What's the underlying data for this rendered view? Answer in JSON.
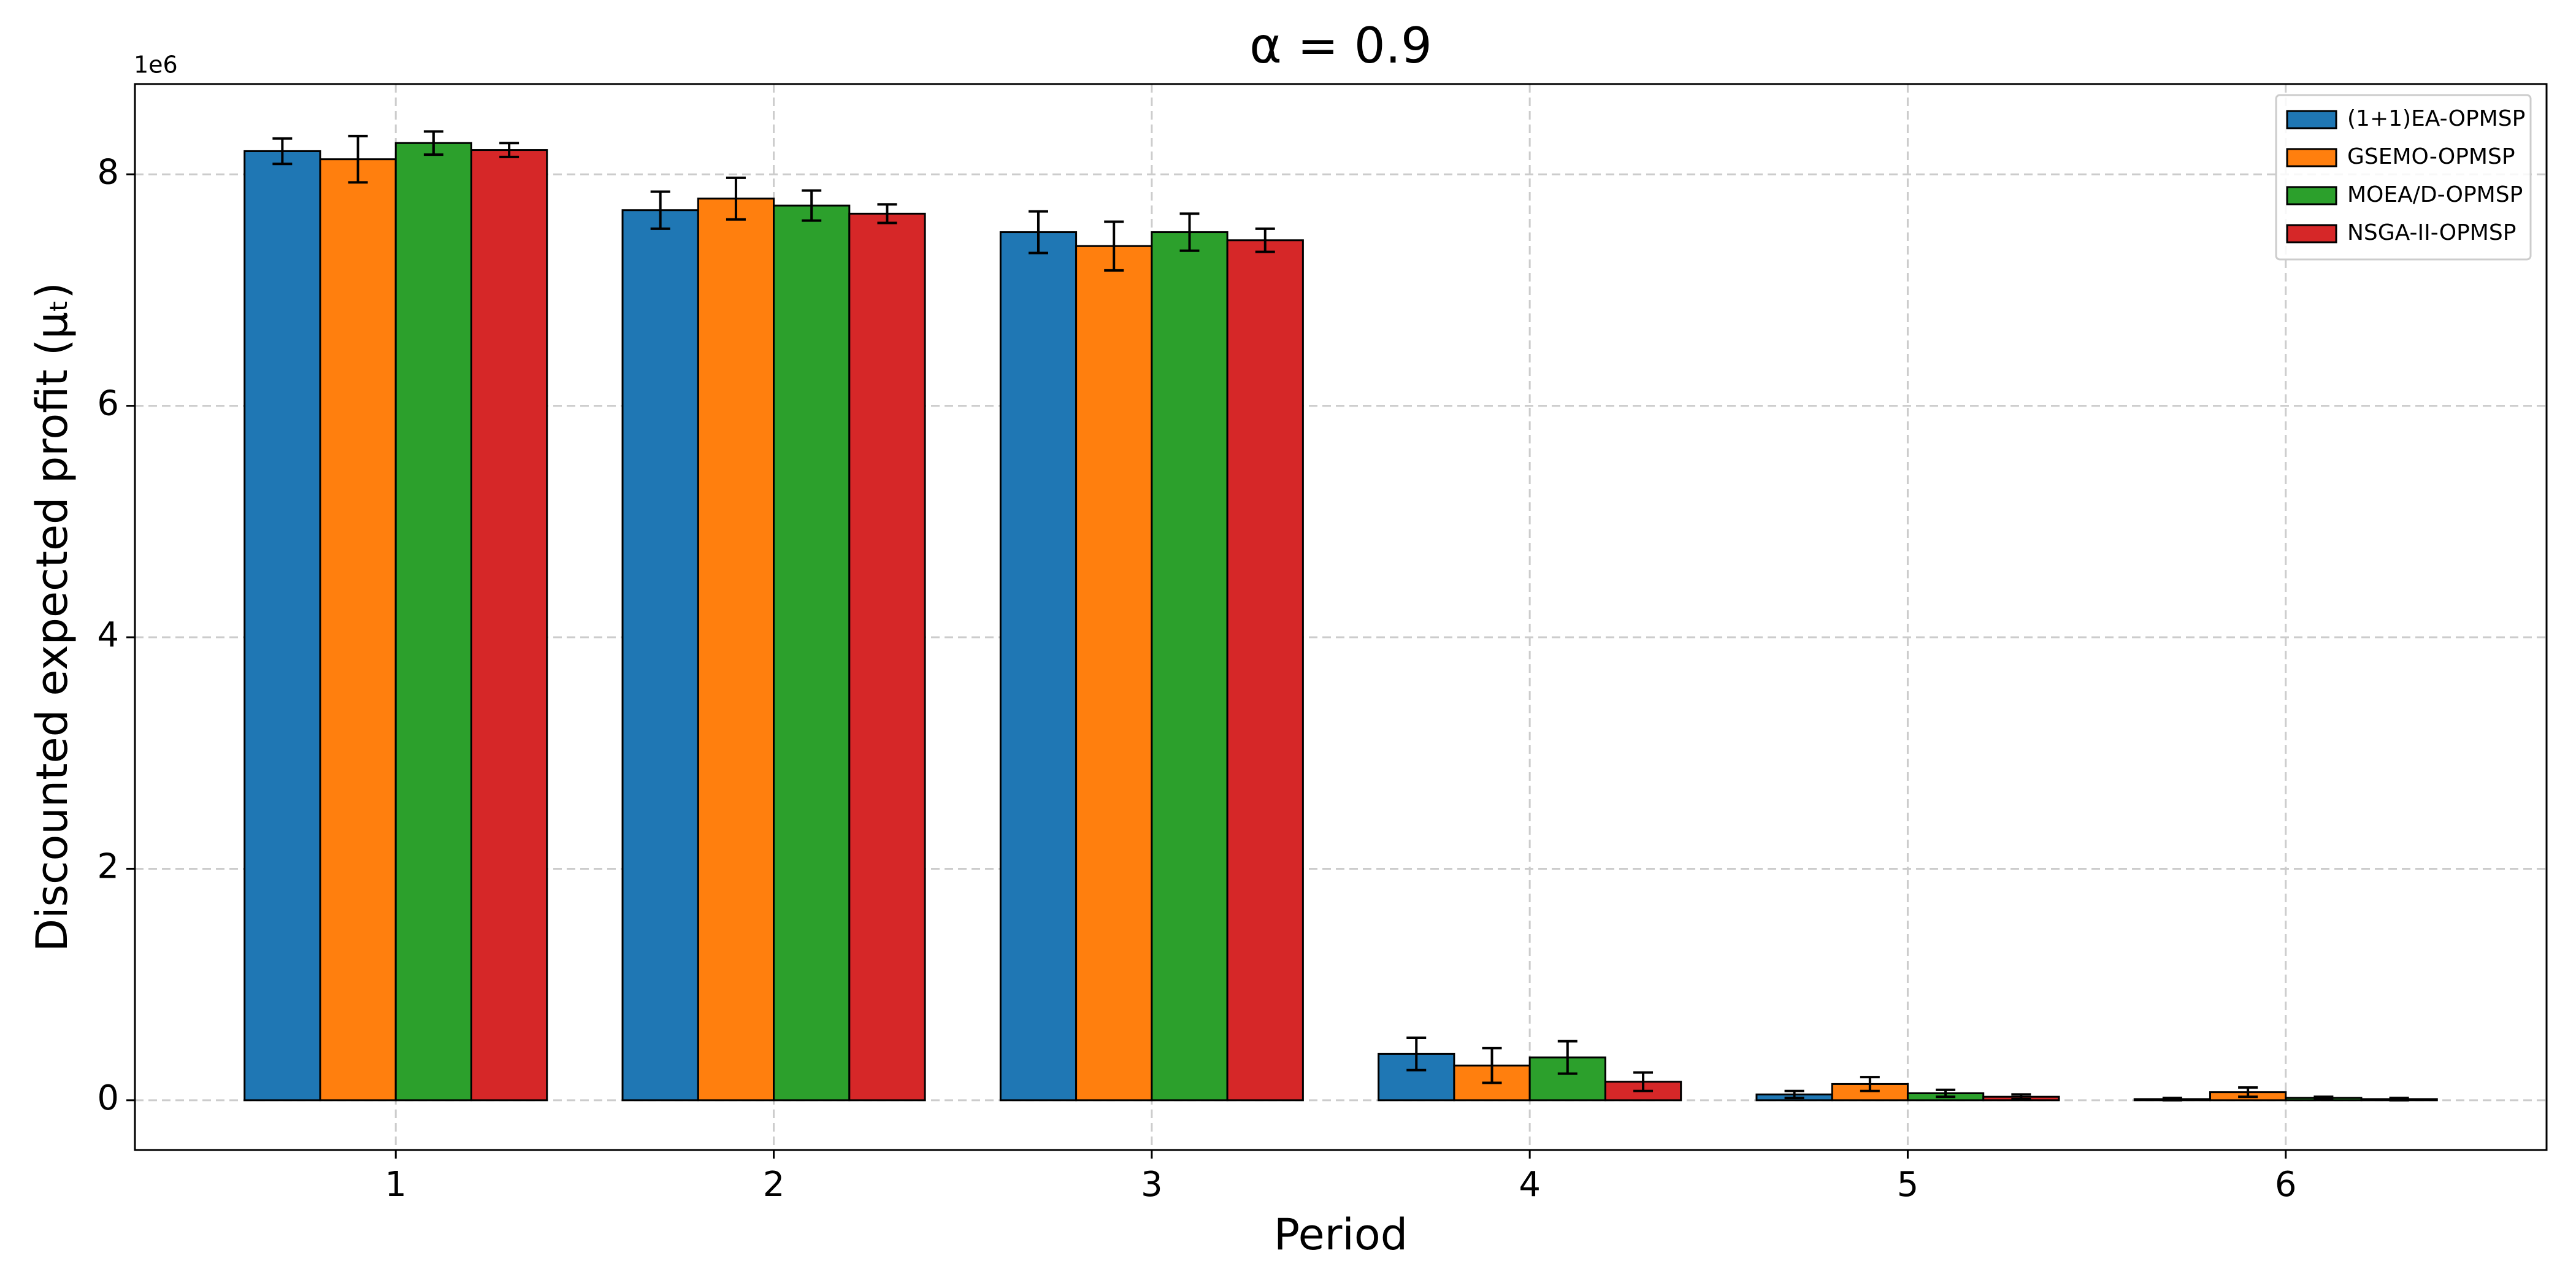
{
  "chart_data": {
    "type": "bar",
    "title": "α = 0.9",
    "xlabel": "Period",
    "ylabel": "Discounted expected profit (μₜ)",
    "y_offset_label": "1e6",
    "x": [
      1,
      2,
      3,
      4,
      5,
      6
    ],
    "xlim": [
      0.31,
      6.69
    ],
    "xticks": [
      1,
      2,
      3,
      4,
      5,
      6
    ],
    "ylim": [
      -0.43,
      8.78
    ],
    "yticks": [
      0,
      2,
      4,
      6,
      8
    ],
    "grid": true,
    "legend": "upper right",
    "series": [
      {
        "name": "(1+1)EA-OPMSP",
        "color": "#1f77b4",
        "values": [
          8.2,
          7.69,
          7.5,
          0.4,
          0.05,
          0.01
        ],
        "errors": [
          0.11,
          0.16,
          0.18,
          0.14,
          0.03,
          0.01
        ]
      },
      {
        "name": "GSEMO-OPMSP",
        "color": "#ff7f0e",
        "values": [
          8.13,
          7.79,
          7.38,
          0.3,
          0.14,
          0.07
        ],
        "errors": [
          0.2,
          0.18,
          0.21,
          0.15,
          0.06,
          0.04
        ]
      },
      {
        "name": "MOEA/D-OPMSP",
        "color": "#2ca02c",
        "values": [
          8.27,
          7.73,
          7.5,
          0.37,
          0.06,
          0.02
        ],
        "errors": [
          0.1,
          0.13,
          0.16,
          0.14,
          0.03,
          0.01
        ]
      },
      {
        "name": "NSGA-II-OPMSP",
        "color": "#d62728",
        "values": [
          8.21,
          7.66,
          7.43,
          0.16,
          0.03,
          0.01
        ],
        "errors": [
          0.06,
          0.08,
          0.1,
          0.08,
          0.02,
          0.01
        ]
      }
    ]
  }
}
